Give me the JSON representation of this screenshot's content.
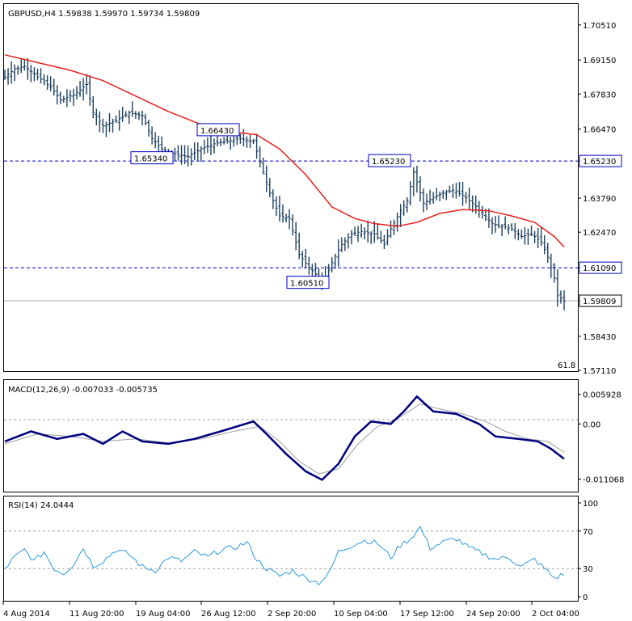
{
  "chart_data": [
    {
      "type": "ohlc",
      "title": "GBPUSD,H4  1.59838 1.59970 1.59734 1.59809",
      "ylim": [
        1.5711,
        1.7085
      ],
      "y_ticks": [
        "1.70510",
        "1.69150",
        "1.67830",
        "1.66470",
        "1.65230",
        "1.63790",
        "1.62470",
        "1.61090",
        "1.59809",
        "1.58430",
        "1.57110"
      ],
      "x_ticks": [
        "4 Aug 2014",
        "11 Aug 20:00",
        "19 Aug 04:00",
        "26 Aug 12:00",
        "2 Sep 20:00",
        "10 Sep 04:00",
        "17 Sep 12:00",
        "24 Sep 20:00",
        "2 Oct 04:00"
      ],
      "price_marker": "1.59809",
      "level_markers": [
        {
          "label": "1.65230",
          "value": 1.6523
        },
        {
          "label": "1.61090",
          "value": 1.6109
        }
      ],
      "annotations": [
        {
          "label": "1.66430",
          "value": 1.6643
        },
        {
          "label": "1.65340",
          "value": 1.6534
        },
        {
          "label": "1.65230",
          "value": 1.6523
        },
        {
          "label": "1.60510",
          "value": 1.6051
        }
      ],
      "fib_label": "61.8",
      "close_path": [
        [
          0,
          1.685
        ],
        [
          3,
          1.688
        ],
        [
          6,
          1.689
        ],
        [
          10,
          1.685
        ],
        [
          14,
          1.681
        ],
        [
          17,
          1.676
        ],
        [
          21,
          1.678
        ],
        [
          25,
          1.682
        ],
        [
          27,
          1.671
        ],
        [
          30,
          1.666
        ],
        [
          34,
          1.668
        ],
        [
          38,
          1.671
        ],
        [
          42,
          1.67
        ],
        [
          45,
          1.661
        ],
        [
          48,
          1.657
        ],
        [
          52,
          1.655
        ],
        [
          56,
          1.654
        ],
        [
          60,
          1.657
        ],
        [
          64,
          1.659
        ],
        [
          68,
          1.66
        ],
        [
          72,
          1.661
        ],
        [
          76,
          1.66
        ],
        [
          78,
          1.652
        ],
        [
          81,
          1.64
        ],
        [
          84,
          1.631
        ],
        [
          87,
          1.63
        ],
        [
          90,
          1.616
        ],
        [
          93,
          1.611
        ],
        [
          96,
          1.607
        ],
        [
          98,
          1.607
        ],
        [
          100,
          1.613
        ],
        [
          103,
          1.62
        ],
        [
          106,
          1.624
        ],
        [
          109,
          1.625
        ],
        [
          113,
          1.624
        ],
        [
          116,
          1.62
        ],
        [
          118,
          1.626
        ],
        [
          121,
          1.633
        ],
        [
          123,
          1.637
        ],
        [
          125,
          1.648
        ],
        [
          128,
          1.636
        ],
        [
          131,
          1.638
        ],
        [
          134,
          1.64
        ],
        [
          137,
          1.641
        ],
        [
          140,
          1.639
        ],
        [
          143,
          1.636
        ],
        [
          146,
          1.632
        ],
        [
          149,
          1.628
        ],
        [
          152,
          1.627
        ],
        [
          155,
          1.626
        ],
        [
          158,
          1.623
        ],
        [
          161,
          1.624
        ],
        [
          164,
          1.621
        ],
        [
          166,
          1.615
        ],
        [
          168,
          1.607
        ],
        [
          169,
          1.6
        ],
        [
          171,
          1.598
        ]
      ],
      "ma_path": [
        [
          0,
          1.6935
        ],
        [
          10,
          1.6905
        ],
        [
          20,
          1.6875
        ],
        [
          30,
          1.6835
        ],
        [
          40,
          1.6775
        ],
        [
          50,
          1.6715
        ],
        [
          60,
          1.6665
        ],
        [
          70,
          1.6635
        ],
        [
          77,
          1.6625
        ],
        [
          84,
          1.657
        ],
        [
          92,
          1.647
        ],
        [
          100,
          1.6345
        ],
        [
          107,
          1.63
        ],
        [
          113,
          1.628
        ],
        [
          120,
          1.627
        ],
        [
          126,
          1.6285
        ],
        [
          133,
          1.632
        ],
        [
          140,
          1.6335
        ],
        [
          148,
          1.633
        ],
        [
          155,
          1.631
        ],
        [
          162,
          1.6285
        ],
        [
          168,
          1.623
        ],
        [
          171,
          1.619
        ]
      ]
    },
    {
      "type": "line",
      "title": "MACD(12,26,9) -0.007033 -0.005735",
      "ylim": [
        -0.0126,
        0.0075
      ],
      "y_ticks": [
        "0.005928",
        "0.00",
        "-0.011068"
      ],
      "main_path": [
        [
          0,
          -0.0035
        ],
        [
          8,
          -0.0015
        ],
        [
          16,
          -0.003
        ],
        [
          24,
          -0.002
        ],
        [
          30,
          -0.004
        ],
        [
          36,
          -0.0015
        ],
        [
          42,
          -0.0035
        ],
        [
          50,
          -0.004
        ],
        [
          58,
          -0.003
        ],
        [
          66,
          -0.0015
        ],
        [
          76,
          0.0005
        ],
        [
          80,
          -0.002
        ],
        [
          86,
          -0.006
        ],
        [
          92,
          -0.0095
        ],
        [
          97,
          -0.0112
        ],
        [
          102,
          -0.008
        ],
        [
          107,
          -0.0025
        ],
        [
          112,
          0.0005
        ],
        [
          118,
          0.0
        ],
        [
          122,
          0.0025
        ],
        [
          126,
          0.0055
        ],
        [
          131,
          0.0025
        ],
        [
          138,
          0.002
        ],
        [
          145,
          0.0
        ],
        [
          150,
          -0.0025
        ],
        [
          157,
          -0.003
        ],
        [
          163,
          -0.0035
        ],
        [
          167,
          -0.005
        ],
        [
          171,
          -0.007
        ]
      ],
      "signal_path": [
        [
          0,
          -0.004
        ],
        [
          10,
          -0.002
        ],
        [
          20,
          -0.0025
        ],
        [
          30,
          -0.0035
        ],
        [
          40,
          -0.003
        ],
        [
          50,
          -0.0038
        ],
        [
          60,
          -0.003
        ],
        [
          70,
          -0.0015
        ],
        [
          78,
          -0.0005
        ],
        [
          84,
          -0.0035
        ],
        [
          90,
          -0.0075
        ],
        [
          96,
          -0.01
        ],
        [
          102,
          -0.009
        ],
        [
          108,
          -0.004
        ],
        [
          114,
          -0.0005
        ],
        [
          120,
          0.001
        ],
        [
          127,
          0.004
        ],
        [
          133,
          0.003
        ],
        [
          140,
          0.002
        ],
        [
          147,
          0.0005
        ],
        [
          153,
          -0.0015
        ],
        [
          160,
          -0.003
        ],
        [
          166,
          -0.0035
        ],
        [
          171,
          -0.0057
        ]
      ]
    },
    {
      "type": "line",
      "title": "RSI(14) 24.0444",
      "ylim": [
        0,
        100
      ],
      "y_ticks": [
        "100",
        "70",
        "30",
        "0"
      ],
      "levels": [
        70,
        30
      ],
      "path": [
        [
          0,
          30
        ],
        [
          3,
          42
        ],
        [
          6,
          50
        ],
        [
          9,
          38
        ],
        [
          12,
          48
        ],
        [
          15,
          30
        ],
        [
          18,
          25
        ],
        [
          21,
          35
        ],
        [
          24,
          52
        ],
        [
          27,
          33
        ],
        [
          30,
          38
        ],
        [
          34,
          50
        ],
        [
          38,
          45
        ],
        [
          42,
          32
        ],
        [
          46,
          28
        ],
        [
          50,
          42
        ],
        [
          54,
          38
        ],
        [
          58,
          48
        ],
        [
          62,
          42
        ],
        [
          66,
          50
        ],
        [
          70,
          52
        ],
        [
          74,
          58
        ],
        [
          77,
          40
        ],
        [
          80,
          30
        ],
        [
          84,
          22
        ],
        [
          88,
          28
        ],
        [
          92,
          20
        ],
        [
          96,
          15
        ],
        [
          99,
          24
        ],
        [
          102,
          48
        ],
        [
          106,
          55
        ],
        [
          110,
          60
        ],
        [
          114,
          57
        ],
        [
          118,
          42
        ],
        [
          121,
          55
        ],
        [
          124,
          62
        ],
        [
          127,
          74
        ],
        [
          130,
          52
        ],
        [
          134,
          58
        ],
        [
          138,
          62
        ],
        [
          142,
          52
        ],
        [
          146,
          46
        ],
        [
          150,
          40
        ],
        [
          154,
          42
        ],
        [
          158,
          32
        ],
        [
          162,
          40
        ],
        [
          165,
          30
        ],
        [
          168,
          20
        ],
        [
          171,
          24
        ]
      ]
    }
  ],
  "colors": {
    "bars": "#1e4060",
    "moving_average": "#e8201e",
    "macd_main": "#000080",
    "macd_signal": "#a0a0a0",
    "rsi": "#2f9bde",
    "level_line": "#0000c8",
    "marker_text": "#0000c8"
  }
}
